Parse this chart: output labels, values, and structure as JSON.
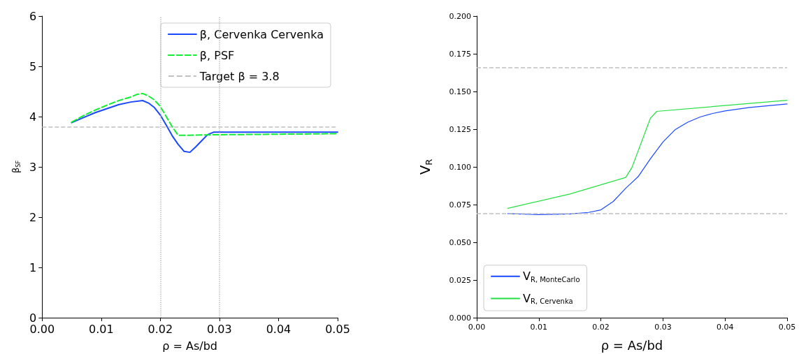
{
  "chart_data": [
    {
      "type": "line",
      "xlabel": "ρ = As/bd",
      "ylabel": "β$_{SF}$",
      "xlim": [
        0,
        0.05
      ],
      "xticks": [
        {
          "value": 0,
          "label": "0.00"
        },
        {
          "value": 0.01,
          "label": "0.01"
        },
        {
          "value": 0.02,
          "label": "0.02"
        },
        {
          "value": 0.03,
          "label": "0.03"
        },
        {
          "value": 0.04,
          "label": "0.04"
        },
        {
          "value": 0.05,
          "label": "0.05"
        }
      ],
      "ylim": [
        0,
        6
      ],
      "yticks": [
        0,
        1,
        2,
        3,
        4,
        5,
        6
      ],
      "grid": false,
      "legend": "top right",
      "marker": "none",
      "series": [
        {
          "name": "β, Cervenka Cervenka",
          "color": "#1a48ff",
          "line_style": "solid",
          "x": [
            0.005,
            0.007,
            0.009,
            0.011,
            0.013,
            0.015,
            0.017,
            0.018,
            0.019,
            0.02,
            0.021,
            0.022,
            0.023,
            0.024,
            0.025,
            0.026,
            0.027,
            0.028,
            0.029,
            0.035,
            0.04,
            0.05
          ],
          "values": [
            3.88,
            3.98,
            4.08,
            4.16,
            4.24,
            4.29,
            4.32,
            4.27,
            4.18,
            4.03,
            3.83,
            3.62,
            3.45,
            3.31,
            3.29,
            3.4,
            3.52,
            3.64,
            3.69,
            3.69,
            3.69,
            3.69
          ]
        },
        {
          "name": "β, PSF",
          "color": "#11ee33",
          "line_style": "dashed",
          "x": [
            0.005,
            0.007,
            0.009,
            0.011,
            0.013,
            0.015,
            0.016,
            0.017,
            0.018,
            0.019,
            0.02,
            0.021,
            0.022,
            0.023,
            0.025,
            0.03,
            0.05
          ],
          "values": [
            3.89,
            4.02,
            4.13,
            4.23,
            4.32,
            4.39,
            4.44,
            4.46,
            4.41,
            4.33,
            4.2,
            4.0,
            3.8,
            3.63,
            3.63,
            3.64,
            3.66
          ]
        }
      ],
      "ref_lines": [
        {
          "axis": "y",
          "value": 3.8,
          "label": "Target β = 3.8",
          "color": "#c0c0c0",
          "line_style": "dashed"
        },
        {
          "axis": "x",
          "value": 0.02,
          "color": "#c0c0c0",
          "line_style": "dotted"
        },
        {
          "axis": "x",
          "value": 0.03,
          "color": "#c0c0c0",
          "line_style": "dotted"
        }
      ]
    },
    {
      "type": "line",
      "xlabel": "ρ = As/bd",
      "ylabel": "V$_{R}$",
      "xlim": [
        0,
        0.05
      ],
      "xticks": [
        {
          "value": 0,
          "label": "0.00"
        },
        {
          "value": 0.01,
          "label": "0.01"
        },
        {
          "value": 0.02,
          "label": "0.02"
        },
        {
          "value": 0.03,
          "label": "0.03"
        },
        {
          "value": 0.04,
          "label": "0.04"
        },
        {
          "value": 0.05,
          "label": "0.05"
        }
      ],
      "ylim": [
        0,
        0.2
      ],
      "yticks": [
        {
          "value": 0,
          "label": "0.000"
        },
        {
          "value": 0.025,
          "label": "0.025"
        },
        {
          "value": 0.05,
          "label": "0.050"
        },
        {
          "value": 0.075,
          "label": "0.075"
        },
        {
          "value": 0.1,
          "label": "0.100"
        },
        {
          "value": 0.125,
          "label": "0.125"
        },
        {
          "value": 0.15,
          "label": "0.150"
        },
        {
          "value": 0.175,
          "label": "0.175"
        },
        {
          "value": 0.2,
          "label": "0.200"
        }
      ],
      "grid": false,
      "legend": "bottom left",
      "marker": "none",
      "series": [
        {
          "name": "V$_{R, MonteCarlo}$",
          "color": "#1a48ff",
          "x": [
            0.005,
            0.01,
            0.015,
            0.018,
            0.02,
            0.022,
            0.024,
            0.026,
            0.028,
            0.03,
            0.032,
            0.034,
            0.036,
            0.038,
            0.04,
            0.044,
            0.05
          ],
          "values": [
            0.069,
            0.0683,
            0.0688,
            0.0698,
            0.0715,
            0.0771,
            0.0858,
            0.0935,
            0.1055,
            0.1165,
            0.1248,
            0.1296,
            0.1331,
            0.1354,
            0.1371,
            0.1394,
            0.1417
          ]
        },
        {
          "name": "V$_{R, Cervenka}$",
          "color": "#22e040",
          "x": [
            0.005,
            0.015,
            0.024,
            0.025,
            0.028,
            0.029,
            0.05
          ],
          "values": [
            0.0725,
            0.082,
            0.093,
            0.0996,
            0.1325,
            0.1368,
            0.1442
          ]
        }
      ],
      "ref_lines": [
        {
          "axis": "y",
          "value": 0.1658,
          "color": "#c0c0c0",
          "line_style": "dashed"
        },
        {
          "axis": "y",
          "value": 0.069,
          "color": "#c0c0c0",
          "line_style": "dashed"
        }
      ]
    }
  ]
}
